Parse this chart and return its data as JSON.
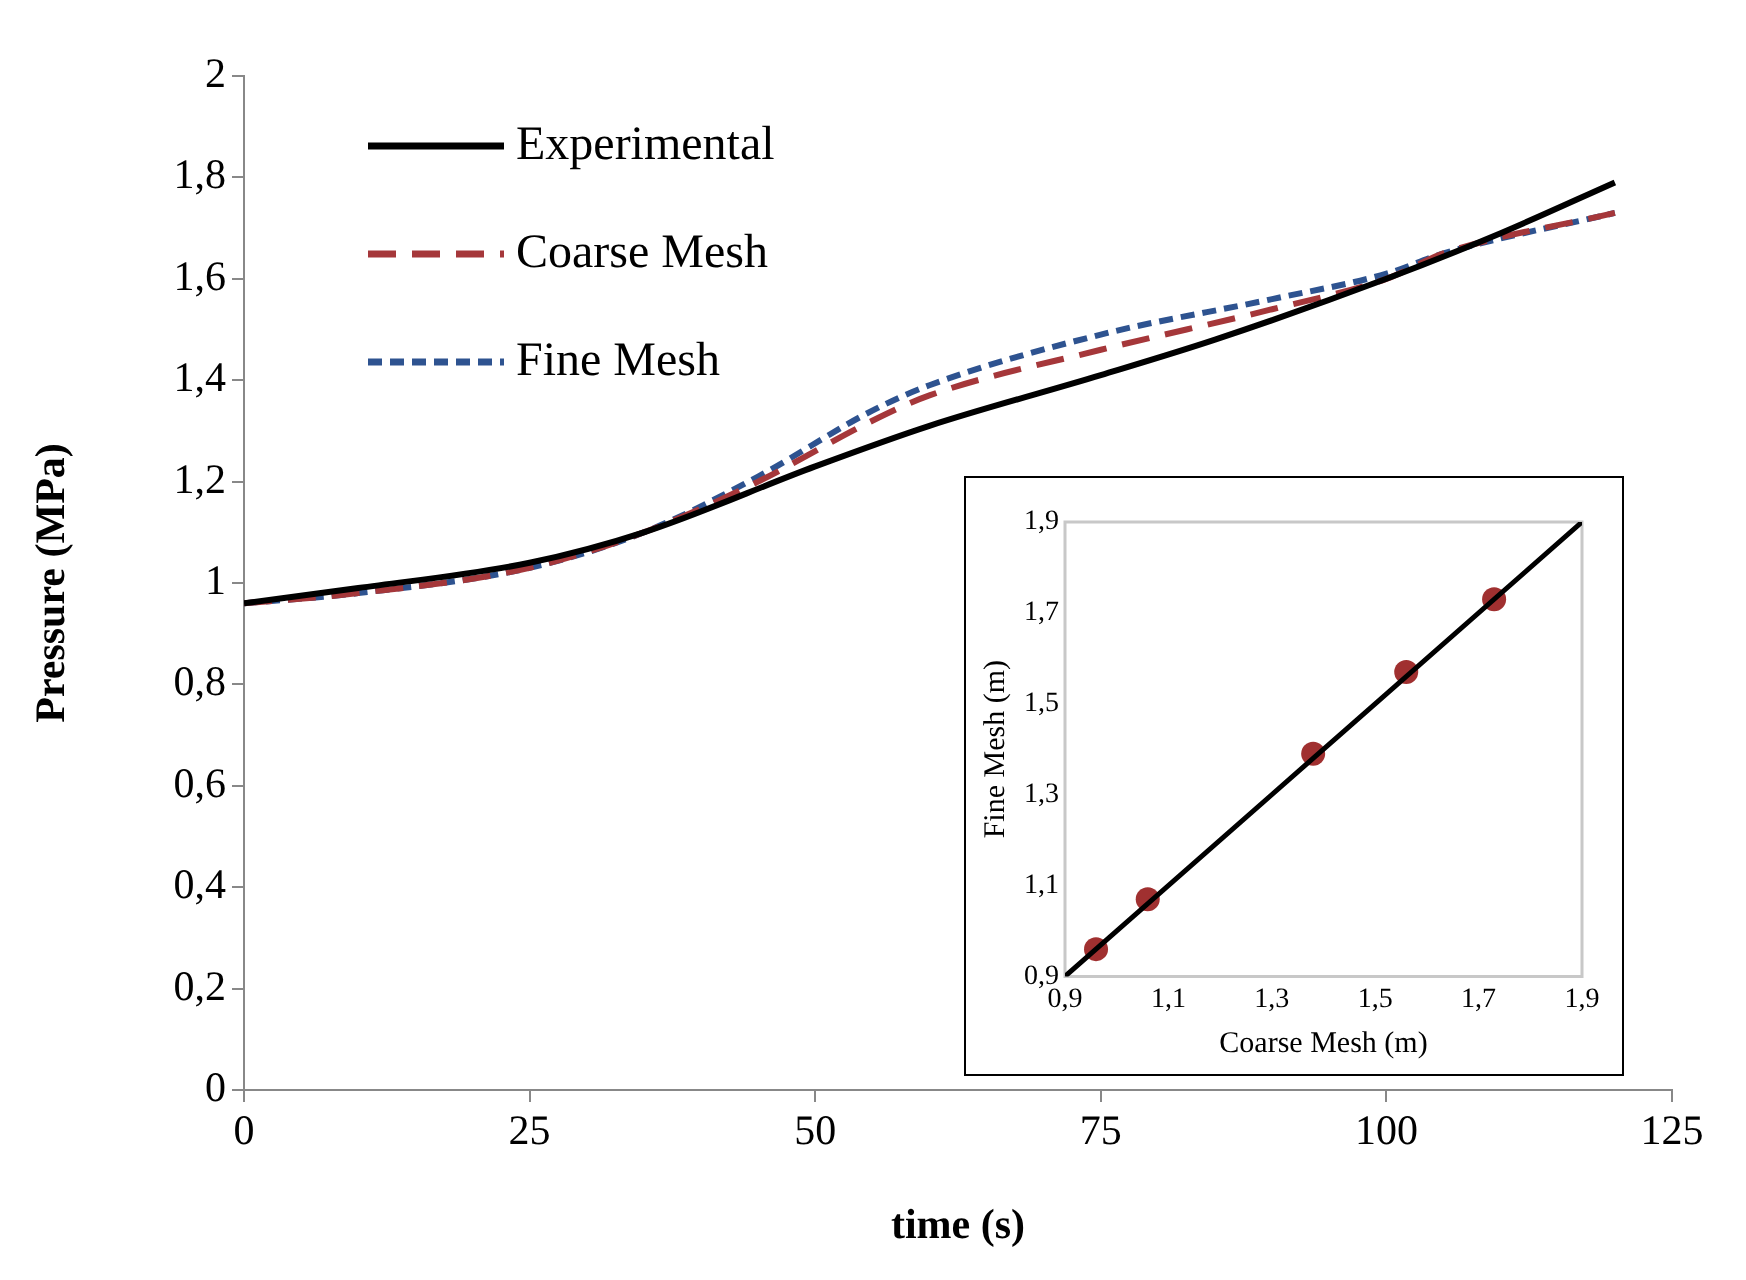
{
  "chart_data": [
    {
      "type": "line",
      "xlabel": "time (s)",
      "ylabel": "Pressure (MPa)",
      "legend": "top left",
      "grid": false,
      "marker": "none",
      "xlim": [
        0,
        125
      ],
      "xticks": [
        0,
        25,
        50,
        75,
        100,
        125
      ],
      "ylim": [
        0,
        2
      ],
      "yticks": [
        0,
        {
          "value": 0.2,
          "label": "0,2"
        },
        {
          "value": 0.4,
          "label": "0,4"
        },
        {
          "value": 0.6,
          "label": "0,6"
        },
        {
          "value": 0.8,
          "label": "0,8"
        },
        1,
        {
          "value": 1.2,
          "label": "1,2"
        },
        {
          "value": 1.4,
          "label": "1,4"
        },
        {
          "value": 1.6,
          "label": "1,6"
        },
        {
          "value": 1.8,
          "label": "1,8"
        },
        2
      ],
      "series": [
        {
          "name": "Experimental",
          "color": "#000000",
          "line_style": "solid",
          "x": [
            0,
            10,
            25,
            35,
            50,
            60,
            75,
            85,
            100,
            110,
            120
          ],
          "values": [
            0.96,
            0.99,
            1.04,
            1.1,
            1.23,
            1.31,
            1.41,
            1.48,
            1.6,
            1.69,
            1.79
          ]
        },
        {
          "name": "Coarse Mesh",
          "color": "#a5373a",
          "line_style": "dashed",
          "x": [
            0,
            10,
            25,
            35,
            45,
            55,
            60,
            75,
            90,
            100,
            105,
            120
          ],
          "values": [
            0.96,
            0.98,
            1.03,
            1.1,
            1.2,
            1.32,
            1.37,
            1.46,
            1.54,
            1.6,
            1.65,
            1.73
          ]
        },
        {
          "name": "Fine Mesh",
          "color": "#2e5390",
          "line_style": "dotted",
          "x": [
            0,
            10,
            25,
            35,
            45,
            55,
            60,
            75,
            90,
            100,
            105,
            120
          ],
          "values": [
            0.96,
            0.98,
            1.03,
            1.1,
            1.21,
            1.34,
            1.39,
            1.49,
            1.56,
            1.61,
            1.65,
            1.73
          ]
        }
      ]
    },
    {
      "type": "scatter",
      "xlabel": "Coarse Mesh (m)",
      "ylabel": "Fine Mesh (m)",
      "grid": false,
      "legend": false,
      "xlim": [
        0.9,
        1.9
      ],
      "xticks": [
        {
          "value": 0.9,
          "label": "0,9"
        },
        {
          "value": 1.1,
          "label": "1,1"
        },
        {
          "value": 1.3,
          "label": "1,3"
        },
        {
          "value": 1.5,
          "label": "1,5"
        },
        {
          "value": 1.7,
          "label": "1,7"
        },
        {
          "value": 1.9,
          "label": "1,9"
        }
      ],
      "ylim": [
        0.9,
        1.9
      ],
      "yticks": [
        {
          "value": 0.9,
          "label": "0,9"
        },
        {
          "value": 1.1,
          "label": "1,1"
        },
        {
          "value": 1.3,
          "label": "1,3"
        },
        {
          "value": 1.5,
          "label": "1,5"
        },
        {
          "value": 1.7,
          "label": "1,7"
        },
        {
          "value": 1.9,
          "label": "1,9"
        }
      ],
      "series": [
        {
          "type": "line",
          "color": "#000000",
          "x": [
            0.9,
            1.9
          ],
          "values": [
            0.9,
            1.9
          ]
        },
        {
          "marker": "circle",
          "color": "#a03030",
          "x": [
            0.96,
            1.06,
            1.38,
            1.56,
            1.73
          ],
          "values": [
            0.96,
            1.07,
            1.39,
            1.57,
            1.73
          ]
        }
      ]
    }
  ]
}
